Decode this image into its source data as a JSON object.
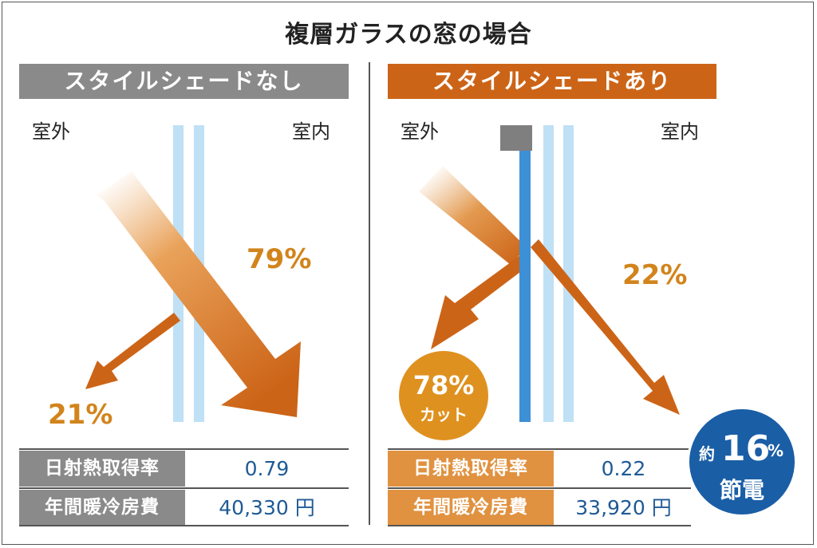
{
  "title": "複層ガラスの窓の場合",
  "colors": {
    "orange_dark": "#cc6417",
    "orange_light": "#df911f",
    "label_orange": "#e09240",
    "gray": "#8a8a8a",
    "glass": "#bfe0f5",
    "shade_blue": "#3d8fd6",
    "value_blue": "#1f5a96",
    "save_blue": "#1a5ea6"
  },
  "left": {
    "banner": "スタイルシェードなし",
    "outside": "室外",
    "inside": "室内",
    "transmitted_pct": "79%",
    "reflected_pct": "21%",
    "table": [
      {
        "label": "日射熱取得率",
        "value": "0.79"
      },
      {
        "label": "年間暖冷房費",
        "value": "40,330 円"
      }
    ]
  },
  "right": {
    "banner": "スタイルシェードあり",
    "outside": "室外",
    "inside": "室内",
    "transmitted_pct": "22%",
    "cut_pct": "78%",
    "cut_label": "カット",
    "table": [
      {
        "label": "日射熱取得率",
        "value": "0.22"
      },
      {
        "label": "年間暖冷房費",
        "value": "33,920 円"
      }
    ],
    "savings": {
      "prefix": "約",
      "number": "16",
      "unit": "%",
      "word": "節電"
    }
  }
}
